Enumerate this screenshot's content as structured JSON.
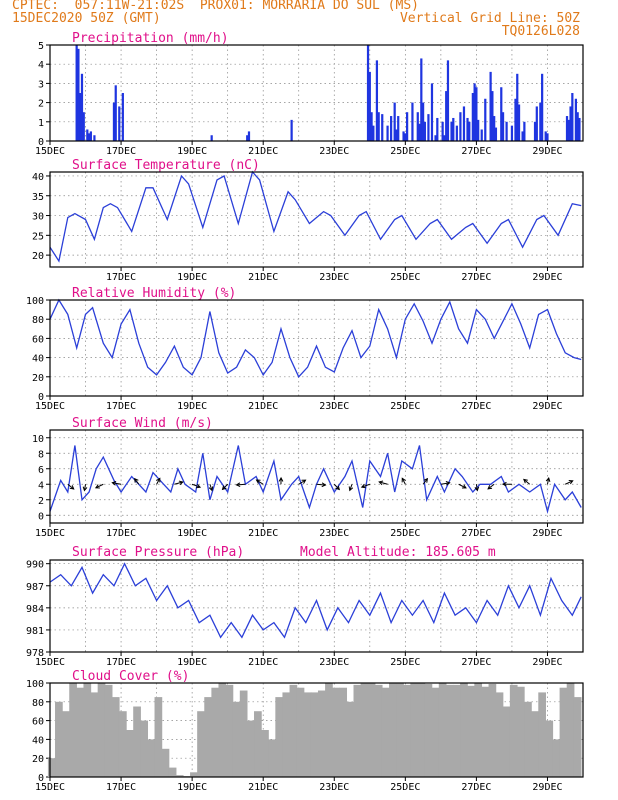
{
  "header": {
    "line1_left": "CPTEC:  057:11W-21:02S  PROX01: MORRARIA DO SUL (MS)",
    "line2_left": "15DEC2020 50Z (GMT)",
    "line2_right": "Vertical Grid Line: 50Z",
    "line3_right": "TQ0126L028"
  },
  "colors": {
    "title": "#e0108a",
    "header": "#e07a1a",
    "series": "#2b3fd8",
    "cloud": "#a9a9a9",
    "bars": "#1f35e0"
  },
  "chart_data": [
    {
      "type": "bar",
      "title": "Precipitation (mm/h)",
      "ylim": [
        0,
        5
      ],
      "yticks": [
        "0",
        "1",
        "2",
        "3",
        "4",
        "5"
      ],
      "xticks": [
        "15DEC",
        "17DEC",
        "19DEC",
        "21DEC",
        "23DEC",
        "25DEC",
        "27DEC",
        "29DEC"
      ],
      "x": [
        0.75,
        0.8,
        0.85,
        0.9,
        0.95,
        1.05,
        1.1,
        1.15,
        1.25,
        1.8,
        1.85,
        1.95,
        2.05,
        4.55,
        5.55,
        5.6,
        6.8,
        8.95,
        9.0,
        9.05,
        9.1,
        9.2,
        9.25,
        9.35,
        9.5,
        9.6,
        9.7,
        9.75,
        9.8,
        9.95,
        10.0,
        10.05,
        10.2,
        10.35,
        10.4,
        10.45,
        10.5,
        10.55,
        10.65,
        10.75,
        10.85,
        10.9,
        11.05,
        11.1,
        11.15,
        11.2,
        11.3,
        11.35,
        11.45,
        11.55,
        11.65,
        11.75,
        11.8,
        11.9,
        11.95,
        12.0,
        12.05,
        12.15,
        12.25,
        12.4,
        12.45,
        12.5,
        12.55,
        12.7,
        12.75,
        12.85,
        13.0,
        13.1,
        13.15,
        13.2,
        13.3,
        13.35,
        13.65,
        13.7,
        13.8,
        13.85,
        13.95,
        14.0,
        14.55,
        14.6,
        14.65,
        14.7,
        14.8,
        14.85,
        14.9
      ],
      "values": [
        5.0,
        4.8,
        2.5,
        3.5,
        1.5,
        0.6,
        0.4,
        0.5,
        0.3,
        2.0,
        2.9,
        1.8,
        2.5,
        0.3,
        0.3,
        0.5,
        1.1,
        5.0,
        3.6,
        1.5,
        0.8,
        4.2,
        1.5,
        1.4,
        0.8,
        1.3,
        2.0,
        0.6,
        1.3,
        0.5,
        0.4,
        1.5,
        2.0,
        1.5,
        0.9,
        4.3,
        2.0,
        1.0,
        1.4,
        3.0,
        0.3,
        1.2,
        1.0,
        0.3,
        2.6,
        4.2,
        1.0,
        1.2,
        0.8,
        1.5,
        1.8,
        1.2,
        1.0,
        2.5,
        3.0,
        2.8,
        1.1,
        0.6,
        2.2,
        3.6,
        2.6,
        1.3,
        0.7,
        2.8,
        1.5,
        1.0,
        0.8,
        2.2,
        3.5,
        1.9,
        0.5,
        1.0,
        1.0,
        1.8,
        2.0,
        3.5,
        0.5,
        0.4,
        1.3,
        1.1,
        1.8,
        2.5,
        2.2,
        1.5,
        1.2
      ]
    },
    {
      "type": "line",
      "title": "Surface Temperature (nC)",
      "ylim": [
        17,
        41
      ],
      "yticks": [
        "20",
        "25",
        "30",
        "35",
        "40"
      ],
      "xticks": [
        "17DEC",
        "19DEC",
        "21DEC",
        "23DEC",
        "25DEC",
        "27DEC",
        "29DEC"
      ],
      "x": [
        0,
        0.25,
        0.5,
        0.7,
        1.0,
        1.25,
        1.5,
        1.7,
        1.9,
        2.3,
        2.7,
        2.9,
        3.3,
        3.7,
        3.9,
        4.3,
        4.7,
        4.9,
        5.3,
        5.7,
        5.9,
        6.3,
        6.7,
        6.9,
        7.3,
        7.7,
        7.9,
        8.3,
        8.7,
        8.9,
        9.3,
        9.7,
        9.9,
        10.3,
        10.7,
        10.9,
        11.3,
        11.7,
        11.9,
        12.3,
        12.7,
        12.9,
        13.3,
        13.7,
        13.9,
        14.3,
        14.7,
        14.95
      ],
      "values": [
        22,
        18.5,
        29.5,
        30.5,
        29,
        24,
        32,
        33,
        32,
        26,
        37,
        37,
        29,
        40,
        38,
        27,
        39,
        40,
        28,
        41,
        39,
        26,
        36,
        34,
        28,
        31,
        30,
        25,
        30,
        31,
        24,
        29,
        30,
        24,
        28,
        29,
        24,
        27,
        28,
        23,
        28,
        29,
        22,
        29,
        30,
        25,
        33,
        32.5
      ]
    },
    {
      "type": "line",
      "title": "Relative Humidity (%)",
      "ylim": [
        0,
        100
      ],
      "yticks": [
        "0",
        "20",
        "40",
        "60",
        "80",
        "100"
      ],
      "xticks": [
        "15DEC",
        "17DEC",
        "19DEC",
        "21DEC",
        "23DEC",
        "25DEC",
        "27DEC",
        "29DEC"
      ],
      "x": [
        0,
        0.25,
        0.5,
        0.75,
        1.0,
        1.2,
        1.5,
        1.75,
        2.0,
        2.25,
        2.5,
        2.75,
        3.0,
        3.25,
        3.5,
        3.75,
        4.0,
        4.25,
        4.5,
        4.75,
        5.0,
        5.25,
        5.5,
        5.75,
        6.0,
        6.25,
        6.5,
        6.75,
        7.0,
        7.25,
        7.5,
        7.75,
        8.0,
        8.25,
        8.5,
        8.75,
        9.0,
        9.25,
        9.5,
        9.75,
        10.0,
        10.25,
        10.5,
        10.75,
        11.0,
        11.25,
        11.5,
        11.75,
        12.0,
        12.25,
        12.5,
        12.75,
        13.0,
        13.25,
        13.5,
        13.75,
        14.0,
        14.25,
        14.5,
        14.75,
        14.95
      ],
      "values": [
        80,
        100,
        85,
        50,
        85,
        92,
        55,
        40,
        75,
        90,
        55,
        30,
        22,
        35,
        52,
        30,
        22,
        40,
        88,
        45,
        24,
        30,
        48,
        40,
        22,
        35,
        70,
        40,
        20,
        30,
        52,
        30,
        25,
        50,
        68,
        40,
        52,
        90,
        70,
        40,
        80,
        96,
        78,
        55,
        80,
        98,
        70,
        55,
        90,
        80,
        60,
        78,
        96,
        75,
        50,
        85,
        90,
        65,
        45,
        40,
        38
      ]
    },
    {
      "type": "line",
      "title": "Surface Wind (m/s)",
      "ylim": [
        -1,
        11
      ],
      "yticks": [
        "0",
        "2",
        "4",
        "6",
        "8",
        "10"
      ],
      "xticks": [
        "15DEC",
        "17DEC",
        "19DEC",
        "21DEC",
        "23DEC",
        "25DEC",
        "27DEC",
        "29DEC"
      ],
      "x": [
        0,
        0.3,
        0.5,
        0.7,
        0.9,
        1.1,
        1.3,
        1.5,
        1.8,
        2.0,
        2.3,
        2.5,
        2.7,
        2.9,
        3.2,
        3.4,
        3.6,
        3.8,
        4.1,
        4.3,
        4.5,
        4.7,
        5.0,
        5.3,
        5.5,
        5.8,
        6.0,
        6.3,
        6.5,
        6.8,
        7.0,
        7.3,
        7.5,
        7.7,
        8.0,
        8.3,
        8.5,
        8.8,
        9.0,
        9.3,
        9.5,
        9.7,
        9.9,
        10.2,
        10.4,
        10.6,
        10.9,
        11.1,
        11.4,
        11.6,
        11.9,
        12.1,
        12.4,
        12.7,
        12.9,
        13.2,
        13.5,
        13.8,
        14.0,
        14.2,
        14.5,
        14.7,
        14.95
      ],
      "values": [
        0.5,
        4.5,
        3,
        9,
        2,
        3,
        6,
        7.5,
        4.5,
        3,
        5,
        4,
        3,
        5.5,
        4,
        3,
        6,
        4,
        3,
        8,
        2,
        5,
        3,
        9,
        4,
        5,
        3,
        7,
        2,
        4,
        5,
        1,
        4,
        6,
        3,
        5,
        7,
        1,
        7,
        5,
        8,
        3,
        7,
        6,
        9,
        2,
        5,
        3,
        6,
        5,
        3,
        4,
        4,
        5,
        3,
        4,
        3,
        4,
        0.5,
        4,
        2,
        3,
        1
      ]
    },
    {
      "type": "line",
      "title": "Surface Pressure (hPa)",
      "subtitle": "Model Altitude: 185.605 m",
      "ylim": [
        978,
        990.5
      ],
      "yticks": [
        "978",
        "981",
        "984",
        "987",
        "990"
      ],
      "xticks": [
        "15DEC",
        "17DEC",
        "19DEC",
        "21DEC",
        "23DEC",
        "25DEC",
        "27DEC",
        "29DEC"
      ],
      "x": [
        0,
        0.3,
        0.6,
        0.9,
        1.2,
        1.5,
        1.8,
        2.1,
        2.4,
        2.7,
        3.0,
        3.3,
        3.6,
        3.9,
        4.2,
        4.5,
        4.8,
        5.1,
        5.4,
        5.7,
        6.0,
        6.3,
        6.6,
        6.9,
        7.2,
        7.5,
        7.8,
        8.1,
        8.4,
        8.7,
        9.0,
        9.3,
        9.6,
        9.9,
        10.2,
        10.5,
        10.8,
        11.1,
        11.4,
        11.7,
        12.0,
        12.3,
        12.6,
        12.9,
        13.2,
        13.5,
        13.8,
        14.1,
        14.4,
        14.7,
        14.95
      ],
      "values": [
        987.5,
        988.5,
        987,
        989.5,
        986,
        988.5,
        987,
        990,
        987,
        988,
        985,
        987,
        984,
        985,
        982,
        983,
        980,
        982,
        980,
        983,
        981,
        982,
        980,
        984,
        982,
        985,
        981,
        984,
        982,
        985,
        983,
        986,
        982,
        985,
        983,
        985,
        982,
        986,
        983,
        984,
        982,
        985,
        983,
        987,
        984,
        987,
        983,
        988,
        985,
        983,
        985.5
      ]
    },
    {
      "type": "bar",
      "title": "Cloud Cover (%)",
      "ylim": [
        0,
        100
      ],
      "yticks": [
        "0",
        "20",
        "40",
        "60",
        "80",
        "100"
      ],
      "xticks": [
        "15DEC",
        "17DEC",
        "19DEC",
        "21DEC",
        "23DEC",
        "25DEC",
        "27DEC",
        "29DEC"
      ],
      "x": [
        0.05,
        0.25,
        0.45,
        0.65,
        0.85,
        1.05,
        1.25,
        1.45,
        1.65,
        1.85,
        2.05,
        2.25,
        2.45,
        2.65,
        2.85,
        3.05,
        3.25,
        3.45,
        3.65,
        3.85,
        4.05,
        4.25,
        4.45,
        4.65,
        4.85,
        5.05,
        5.25,
        5.45,
        5.65,
        5.85,
        6.05,
        6.25,
        6.45,
        6.65,
        6.85,
        7.05,
        7.25,
        7.45,
        7.65,
        7.85,
        8.05,
        8.25,
        8.45,
        8.65,
        8.85,
        9.05,
        9.25,
        9.45,
        9.65,
        9.85,
        10.05,
        10.25,
        10.45,
        10.65,
        10.85,
        11.05,
        11.25,
        11.45,
        11.65,
        11.85,
        12.05,
        12.25,
        12.45,
        12.65,
        12.85,
        13.05,
        13.25,
        13.45,
        13.65,
        13.85,
        14.05,
        14.25,
        14.45,
        14.65,
        14.85
      ],
      "values": [
        20,
        80,
        70,
        100,
        95,
        100,
        90,
        100,
        98,
        85,
        70,
        50,
        75,
        60,
        40,
        85,
        30,
        10,
        2,
        1,
        5,
        70,
        85,
        95,
        100,
        98,
        80,
        92,
        60,
        70,
        50,
        40,
        85,
        90,
        98,
        95,
        90,
        90,
        92,
        100,
        95,
        95,
        80,
        98,
        100,
        100,
        98,
        95,
        100,
        100,
        98,
        100,
        100,
        99,
        95,
        100,
        98,
        98,
        100,
        97,
        100,
        96,
        99,
        90,
        75,
        98,
        96,
        80,
        70,
        90,
        60,
        40,
        95,
        100,
        85
      ]
    }
  ]
}
